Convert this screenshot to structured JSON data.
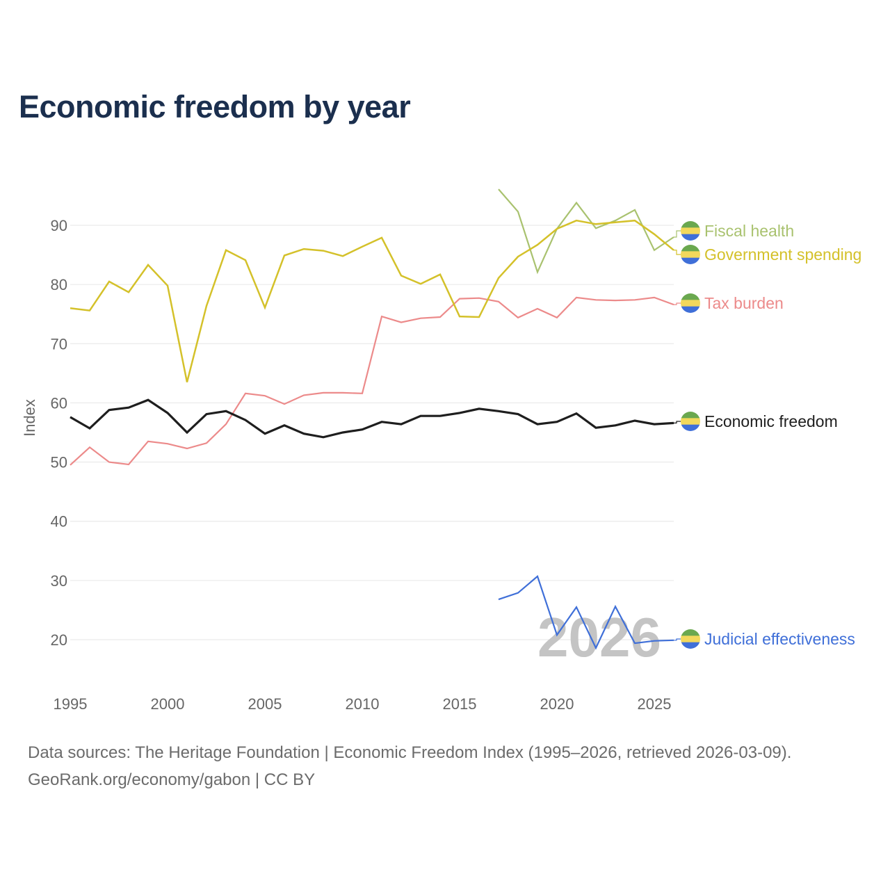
{
  "title": "Economic freedom by year",
  "footer": {
    "line1": "Data sources: The Heritage Foundation | Economic Freedom Index (1995–2026, retrieved 2026-03-09).",
    "line2": "GeoRank.org/economy/gabon | CC BY"
  },
  "chart_data": {
    "type": "line",
    "title": "Economic freedom by year",
    "xlabel": "",
    "ylabel": "Index",
    "xlim": [
      1995,
      2026
    ],
    "ylim": [
      12,
      97
    ],
    "yticks": [
      20,
      30,
      40,
      50,
      60,
      70,
      80,
      90
    ],
    "xticks": [
      1995,
      2000,
      2005,
      2010,
      2015,
      2020,
      2025
    ],
    "grid": true,
    "legend": "right (direct labels)",
    "watermark_year": "2026",
    "series": [
      {
        "name": "Fiscal health",
        "color": "#a9c26f",
        "width": 2.2,
        "start": 2017,
        "values": [
          96.1,
          92.3,
          82.1,
          89.4,
          93.8,
          89.5,
          90.8,
          92.6,
          85.8,
          88.0
        ]
      },
      {
        "name": "Government spending",
        "color": "#d4c12a",
        "width": 2.5,
        "start": 1995,
        "values": [
          76.0,
          75.6,
          80.5,
          78.7,
          83.3,
          79.8,
          63.5,
          76.4,
          85.8,
          84.1,
          76.1,
          84.9,
          86.0,
          85.7,
          84.8,
          86.4,
          87.9,
          81.5,
          80.1,
          81.7,
          74.6,
          74.5,
          81.1,
          84.7,
          86.7,
          89.4,
          90.8,
          90.2,
          90.5,
          90.8,
          88.5,
          85.8
        ]
      },
      {
        "name": "Tax burden",
        "color": "#ec8a8a",
        "width": 2.2,
        "start": 1995,
        "values": [
          49.5,
          52.5,
          50.0,
          49.6,
          53.5,
          53.1,
          52.3,
          53.2,
          56.4,
          61.6,
          61.2,
          59.8,
          61.3,
          61.7,
          61.7,
          61.6,
          74.6,
          73.6,
          74.3,
          74.5,
          77.6,
          77.7,
          77.1,
          74.4,
          75.9,
          74.4,
          77.8,
          77.4,
          77.3,
          77.4,
          77.8,
          76.6
        ]
      },
      {
        "name": "Economic freedom",
        "color": "#1e1e1e",
        "width": 3.2,
        "start": 1995,
        "values": [
          57.6,
          55.7,
          58.8,
          59.2,
          60.5,
          58.3,
          55.0,
          58.1,
          58.6,
          57.1,
          54.8,
          56.2,
          54.8,
          54.2,
          55.0,
          55.5,
          56.8,
          56.4,
          57.8,
          57.8,
          58.3,
          59.0,
          58.6,
          58.1,
          56.4,
          56.8,
          58.2,
          55.8,
          56.2,
          57.0,
          56.4,
          56.6
        ]
      },
      {
        "name": "Judicial effectiveness",
        "color": "#3f6fd8",
        "width": 2.2,
        "start": 2017,
        "values": [
          26.8,
          27.9,
          30.7,
          20.8,
          25.5,
          18.6,
          25.6,
          19.4,
          19.8,
          19.9
        ]
      }
    ]
  },
  "flag_colors": [
    "#6aa84f",
    "#f2d85c",
    "#3f6fd8"
  ]
}
